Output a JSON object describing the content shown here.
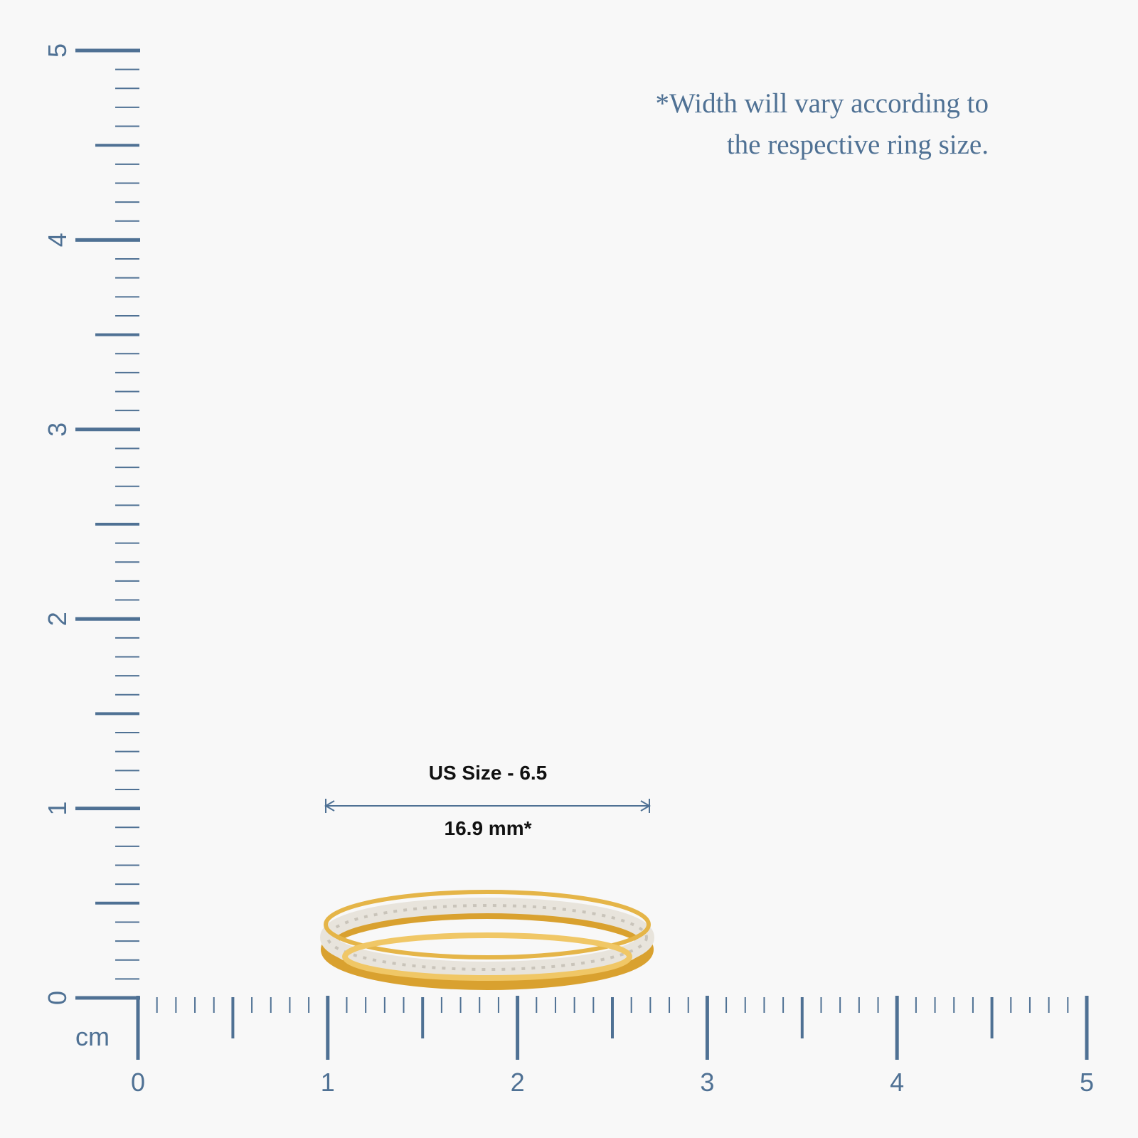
{
  "note": {
    "lines": [
      "*Width will vary according to",
      "the respective ring size."
    ]
  },
  "measurement": {
    "size_label": "US Size - 6.5",
    "width_label": "16.9 mm*"
  },
  "rulers": {
    "unit": "cm",
    "x_ticks": [
      0,
      1,
      2,
      3,
      4,
      5
    ],
    "y_ticks": [
      0,
      1,
      2,
      3,
      4,
      5
    ]
  }
}
